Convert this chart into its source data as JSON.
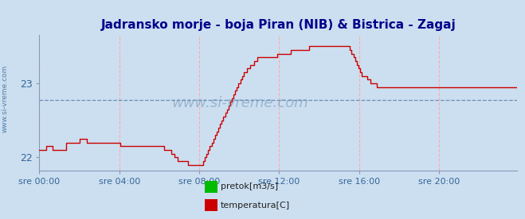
{
  "title": "Jadransko morje - boja Piran (NIB) & Bistrica - Zagaj",
  "title_color": "#00008B",
  "background_color": "#ccdff0",
  "plot_bg_color": "#ccdff0",
  "yticks": [
    22,
    23
  ],
  "ylim": [
    21.82,
    23.65
  ],
  "xlim": [
    0,
    287
  ],
  "xtick_labels": [
    "sre 00:00",
    "sre 04:00",
    "sre 08:00",
    "sre 12:00",
    "sre 16:00",
    "sre 20:00"
  ],
  "xtick_positions": [
    0,
    48,
    96,
    144,
    192,
    240
  ],
  "grid_color": "#ffaaaa",
  "watermark": "www.si-vreme.com",
  "watermark_color": "#7799bb",
  "legend_items": [
    "temperatura[C]",
    "pretok[m3/s]"
  ],
  "legend_colors": [
    "#cc0000",
    "#00bb00"
  ],
  "temp_color": "#cc0000",
  "pretok_color": "#00bb00",
  "dashed_line_y": 22.78,
  "temp_data": [
    22.1,
    22.1,
    22.1,
    22.1,
    22.15,
    22.15,
    22.15,
    22.15,
    22.1,
    22.1,
    22.1,
    22.1,
    22.1,
    22.1,
    22.1,
    22.1,
    22.2,
    22.2,
    22.2,
    22.2,
    22.2,
    22.2,
    22.2,
    22.2,
    22.25,
    22.25,
    22.25,
    22.25,
    22.2,
    22.2,
    22.2,
    22.2,
    22.2,
    22.2,
    22.2,
    22.2,
    22.2,
    22.2,
    22.2,
    22.2,
    22.2,
    22.2,
    22.2,
    22.2,
    22.2,
    22.2,
    22.2,
    22.2,
    22.15,
    22.15,
    22.15,
    22.15,
    22.15,
    22.15,
    22.15,
    22.15,
    22.15,
    22.15,
    22.15,
    22.15,
    22.15,
    22.15,
    22.15,
    22.15,
    22.15,
    22.15,
    22.15,
    22.15,
    22.15,
    22.15,
    22.15,
    22.15,
    22.15,
    22.15,
    22.1,
    22.1,
    22.1,
    22.1,
    22.05,
    22.05,
    22.0,
    22.0,
    21.95,
    21.95,
    21.95,
    21.95,
    21.95,
    21.95,
    21.9,
    21.9,
    21.9,
    21.9,
    21.9,
    21.9,
    21.9,
    21.9,
    21.9,
    21.95,
    22.0,
    22.05,
    22.1,
    22.15,
    22.2,
    22.25,
    22.3,
    22.35,
    22.4,
    22.45,
    22.5,
    22.55,
    22.6,
    22.65,
    22.7,
    22.75,
    22.8,
    22.85,
    22.9,
    22.95,
    23.0,
    23.05,
    23.1,
    23.15,
    23.15,
    23.2,
    23.2,
    23.25,
    23.25,
    23.3,
    23.3,
    23.35,
    23.35,
    23.35,
    23.35,
    23.35,
    23.35,
    23.35,
    23.35,
    23.35,
    23.35,
    23.35,
    23.35,
    23.4,
    23.4,
    23.4,
    23.4,
    23.4,
    23.4,
    23.4,
    23.4,
    23.45,
    23.45,
    23.45,
    23.45,
    23.45,
    23.45,
    23.45,
    23.45,
    23.45,
    23.45,
    23.45,
    23.5,
    23.5,
    23.5,
    23.5,
    23.5,
    23.5,
    23.5,
    23.5,
    23.5,
    23.5,
    23.5,
    23.5,
    23.5,
    23.5,
    23.5,
    23.5,
    23.5,
    23.5,
    23.5,
    23.5,
    23.5,
    23.5,
    23.5,
    23.5,
    23.45,
    23.4,
    23.35,
    23.3,
    23.25,
    23.2,
    23.15,
    23.1,
    23.1,
    23.1,
    23.05,
    23.05,
    23.0,
    23.0,
    23.0,
    23.0,
    22.95,
    22.95,
    22.95,
    22.95,
    22.95,
    22.95,
    22.95,
    22.95,
    22.95,
    22.95,
    22.95,
    22.95,
    22.95,
    22.95,
    22.95,
    22.95,
    22.95,
    22.95,
    22.95,
    22.95,
    22.95,
    22.95,
    22.95,
    22.95,
    22.95,
    22.95,
    22.95,
    22.95,
    22.95,
    22.95,
    22.95,
    22.95,
    22.95,
    22.95,
    22.95,
    22.95,
    22.95,
    22.95,
    22.95,
    22.95,
    22.95,
    22.95,
    22.95,
    22.95,
    22.95,
    22.95,
    22.95,
    22.95,
    22.95,
    22.95,
    22.95,
    22.95,
    22.95,
    22.95,
    22.95,
    22.95,
    22.95,
    22.95,
    22.95,
    22.95,
    22.95,
    22.95,
    22.95,
    22.95,
    22.95,
    22.95,
    22.95,
    22.95,
    22.95,
    22.95,
    22.95,
    22.95,
    22.95,
    22.95,
    22.95,
    22.95,
    22.95,
    22.95,
    22.95,
    22.95,
    22.95,
    22.95,
    22.95,
    22.95
  ]
}
